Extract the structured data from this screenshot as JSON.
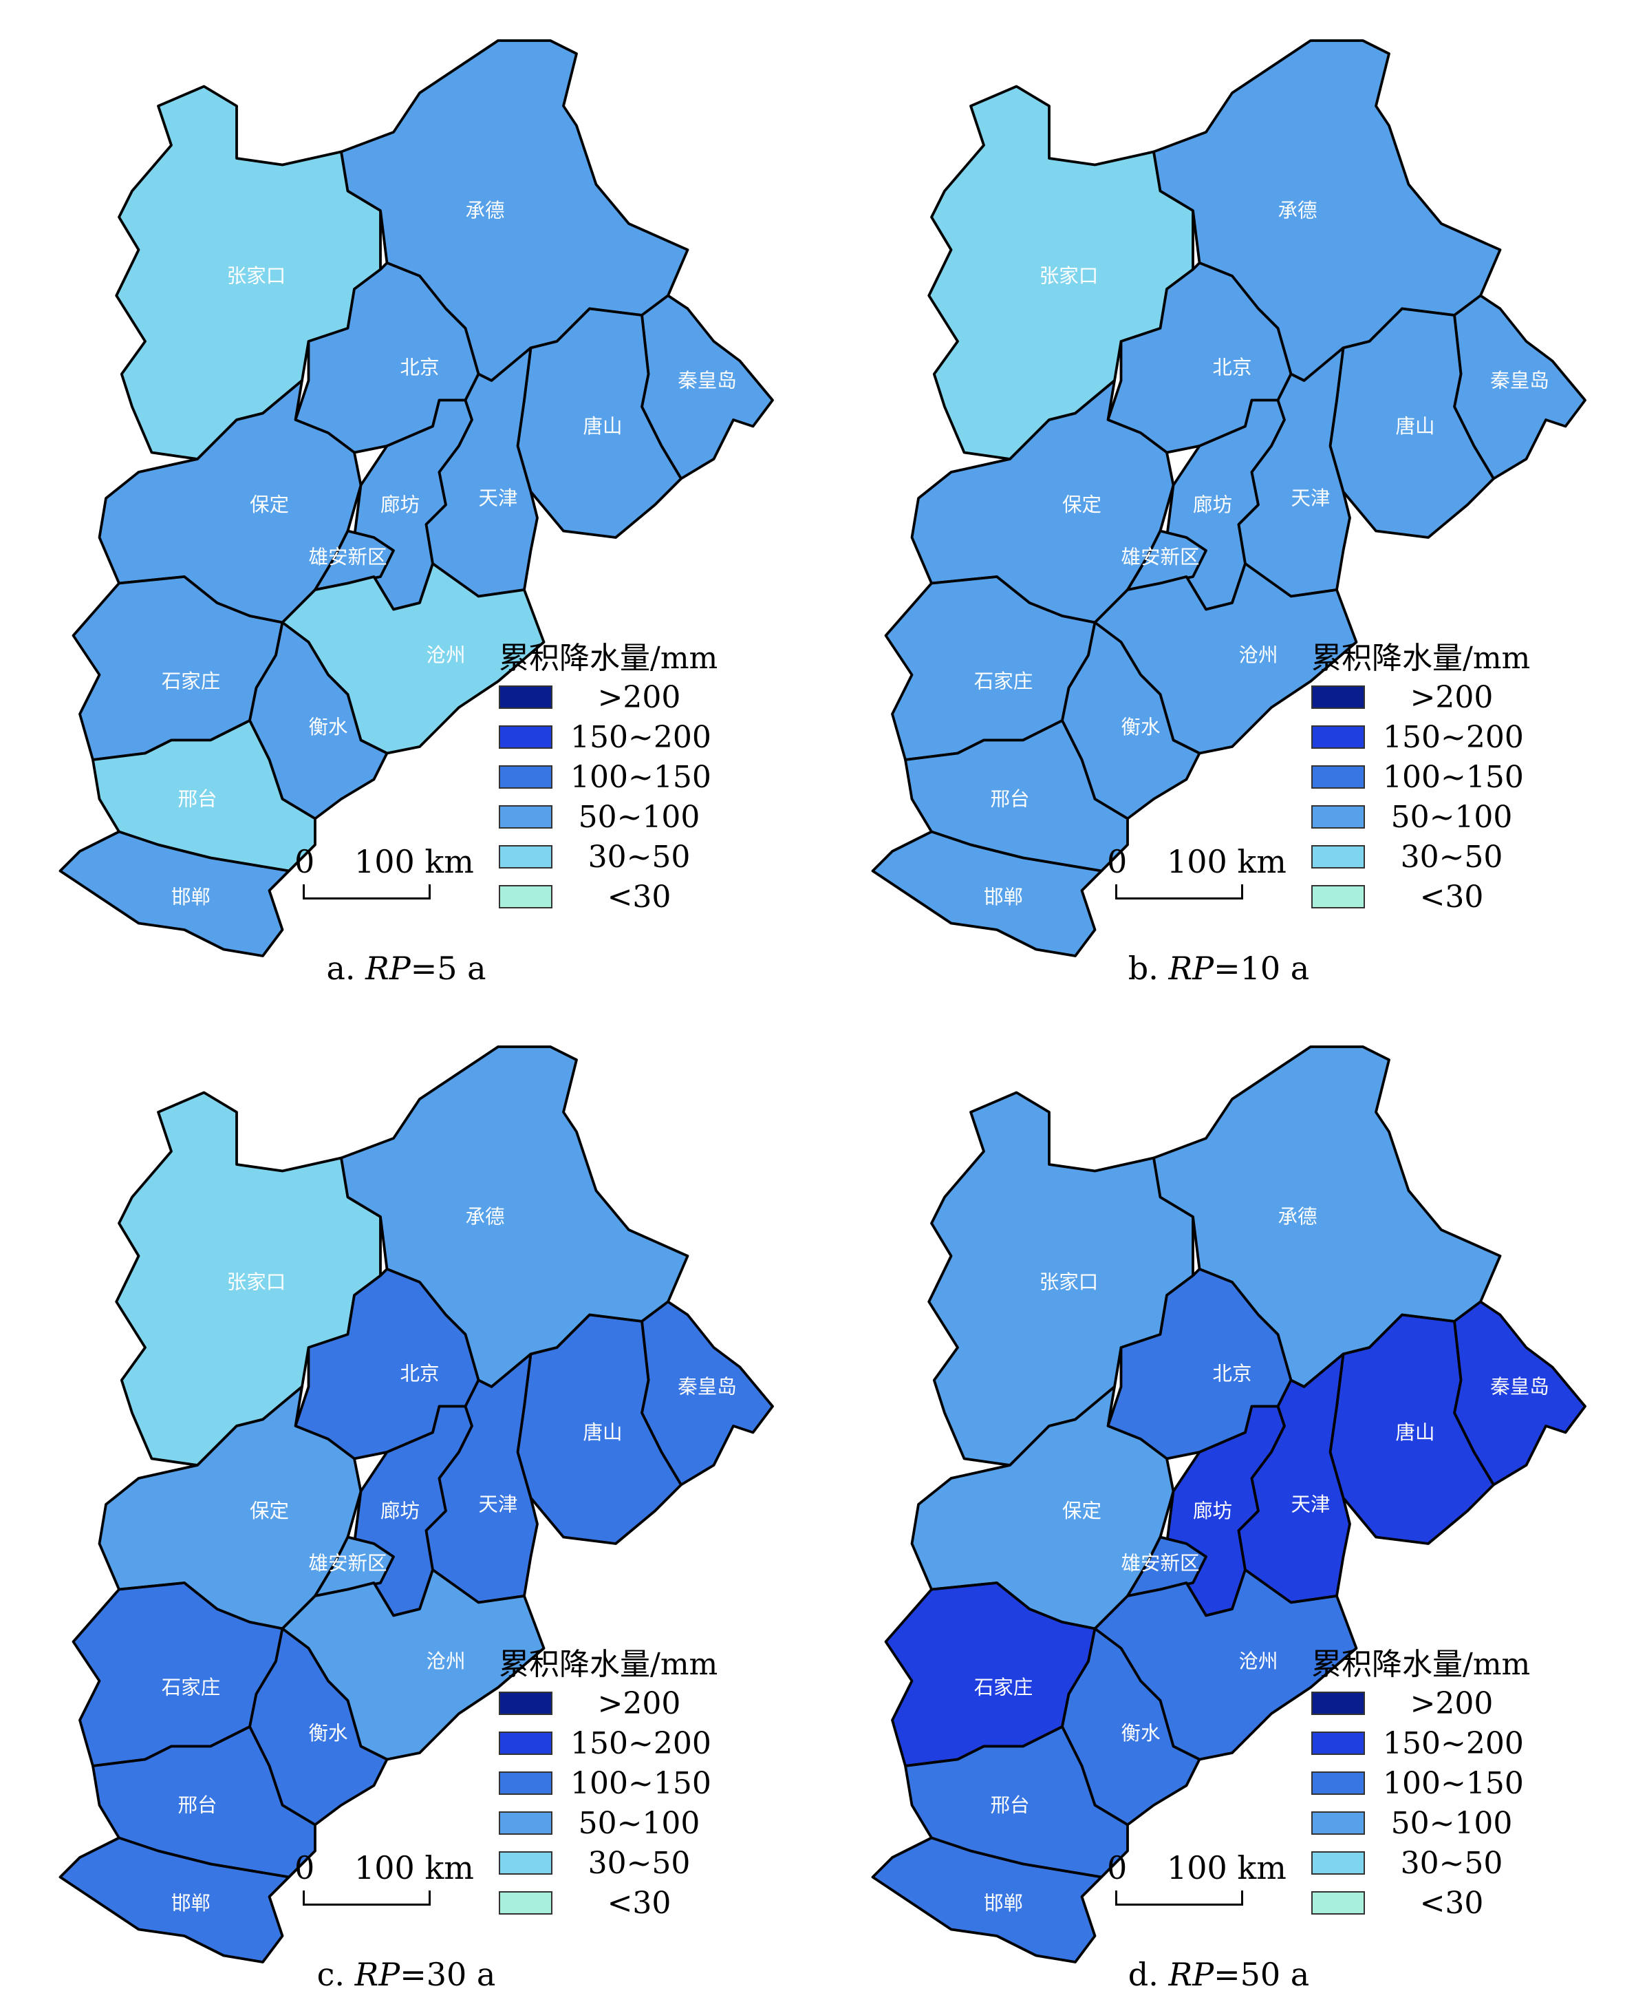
{
  "legend": {
    "title": "累积降水量/mm",
    "classes": [
      {
        "label": ">200",
        "color": "#0a1d8f"
      },
      {
        "label": "150~200",
        "color": "#1f3fe0"
      },
      {
        "label": "100~150",
        "color": "#3877e3"
      },
      {
        "label": "50~100",
        "color": "#56a1ea"
      },
      {
        "label": "30~50",
        "color": "#80d5ee"
      },
      {
        "label": "<30",
        "color": "#a8f0dc"
      }
    ]
  },
  "scalebar": {
    "zero": "0",
    "distance": "100 km"
  },
  "cities": [
    "张家口",
    "承德",
    "北京",
    "秦皇岛",
    "唐山",
    "保定",
    "廊坊",
    "天津",
    "雄安新区",
    "沧州",
    "石家庄",
    "衡水",
    "邢台",
    "邯郸"
  ],
  "panels": [
    {
      "id": "a",
      "caption_prefix": "a. ",
      "rp_label": "RP",
      "caption_suffix": "=5 a",
      "fills": {
        "张家口": 4,
        "承德": 3,
        "北京": 3,
        "秦皇岛": 3,
        "唐山": 3,
        "保定": 3,
        "廊坊": 3,
        "天津": 3,
        "雄安新区": 3,
        "沧州": 4,
        "石家庄": 3,
        "衡水": 3,
        "邢台": 4,
        "邯郸": 3
      }
    },
    {
      "id": "b",
      "caption_prefix": "b. ",
      "rp_label": "RP",
      "caption_suffix": "=10 a",
      "fills": {
        "张家口": 4,
        "承德": 3,
        "北京": 3,
        "秦皇岛": 3,
        "唐山": 3,
        "保定": 3,
        "廊坊": 3,
        "天津": 3,
        "雄安新区": 3,
        "沧州": 3,
        "石家庄": 3,
        "衡水": 3,
        "邢台": 3,
        "邯郸": 3
      }
    },
    {
      "id": "c",
      "caption_prefix": "c. ",
      "rp_label": "RP",
      "caption_suffix": "=30 a",
      "fills": {
        "张家口": 4,
        "承德": 3,
        "北京": 2,
        "秦皇岛": 2,
        "唐山": 2,
        "保定": 3,
        "廊坊": 2,
        "天津": 2,
        "雄安新区": 3,
        "沧州": 3,
        "石家庄": 2,
        "衡水": 2,
        "邢台": 2,
        "邯郸": 2
      }
    },
    {
      "id": "d",
      "caption_prefix": "d. ",
      "rp_label": "RP",
      "caption_suffix": "=50 a",
      "fills": {
        "张家口": 3,
        "承德": 3,
        "北京": 2,
        "秦皇岛": 1,
        "唐山": 1,
        "保定": 3,
        "廊坊": 1,
        "天津": 1,
        "雄安新区": 2,
        "沧州": 2,
        "石家庄": 1,
        "衡水": 2,
        "邢台": 2,
        "邯郸": 2
      }
    }
  ]
}
